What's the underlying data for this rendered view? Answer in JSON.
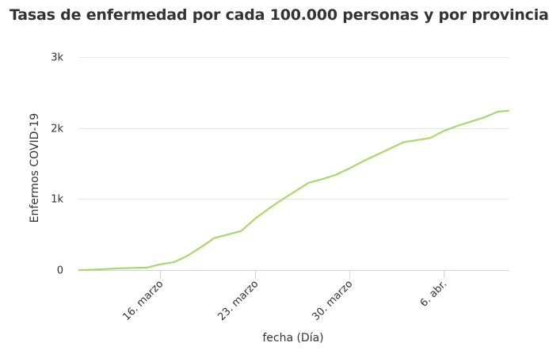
{
  "chart_data": {
    "type": "line",
    "title": "Tasas de enfermedad por cada 100.000 personas y por provincia",
    "xlabel": "fecha (Día)",
    "ylabel": "Enfermos COVID-19",
    "ylim": [
      0,
      3000
    ],
    "y_ticks": [
      {
        "value": 0,
        "label": "0"
      },
      {
        "value": 1000,
        "label": "1k"
      },
      {
        "value": 2000,
        "label": "2k"
      },
      {
        "value": 3000,
        "label": "3k"
      }
    ],
    "x_range": [
      0,
      31
    ],
    "x_ticks": [
      {
        "day": 6,
        "label": "16. marzo"
      },
      {
        "day": 13,
        "label": "23. marzo"
      },
      {
        "day": 20,
        "label": "30. marzo"
      },
      {
        "day": 27,
        "label": "6. abr."
      }
    ],
    "grid": true,
    "legend": "none",
    "series": [
      {
        "name": "Enfermos COVID-19",
        "color": "#a6d96a",
        "points": [
          {
            "day": 0,
            "value": 0
          },
          {
            "day": 1,
            "value": 5
          },
          {
            "day": 2,
            "value": 15
          },
          {
            "day": 3,
            "value": 25
          },
          {
            "day": 4,
            "value": 30
          },
          {
            "day": 5,
            "value": 35
          },
          {
            "day": 6,
            "value": 80
          },
          {
            "day": 7,
            "value": 110
          },
          {
            "day": 8,
            "value": 200
          },
          {
            "day": 9,
            "value": 320
          },
          {
            "day": 10,
            "value": 450
          },
          {
            "day": 11,
            "value": 500
          },
          {
            "day": 12,
            "value": 550
          },
          {
            "day": 13,
            "value": 720
          },
          {
            "day": 14,
            "value": 860
          },
          {
            "day": 15,
            "value": 990
          },
          {
            "day": 16,
            "value": 1110
          },
          {
            "day": 17,
            "value": 1230
          },
          {
            "day": 18,
            "value": 1280
          },
          {
            "day": 19,
            "value": 1340
          },
          {
            "day": 20,
            "value": 1430
          },
          {
            "day": 21,
            "value": 1530
          },
          {
            "day": 22,
            "value": 1620
          },
          {
            "day": 23,
            "value": 1710
          },
          {
            "day": 24,
            "value": 1800
          },
          {
            "day": 25,
            "value": 1830
          },
          {
            "day": 26,
            "value": 1860
          },
          {
            "day": 27,
            "value": 1960
          },
          {
            "day": 28,
            "value": 2030
          },
          {
            "day": 29,
            "value": 2090
          },
          {
            "day": 30,
            "value": 2150
          },
          {
            "day": 31,
            "value": 2230
          },
          {
            "day": 31.8,
            "value": 2245
          }
        ]
      }
    ]
  }
}
